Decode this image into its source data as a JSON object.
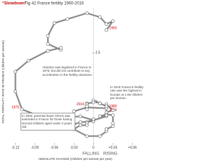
{
  "chart_data": {
    "type": "connected-scatter",
    "title_highlight": "“Slowdown”",
    "title": "Fig 42 France fertility 1960-2016",
    "y_label": "TOTAL FERTILITY RATE IN FRANCE (children per woman)",
    "x_label": "ABSOLUTE CHANGE (children per woman per year)",
    "x_left_label": "FALLING",
    "x_right_label": "RISING",
    "xlim": [
      -0.13,
      0.07
    ],
    "xticks": [
      -0.12,
      -0.09,
      -0.06,
      -0.03,
      0,
      {
        "value": 0.03,
        "label": "+0.03"
      },
      {
        "value": 0.06,
        "label": "+0.06"
      }
    ],
    "ylim": [
      1.62,
      2.95
    ],
    "yticks": [
      2,
      2.5
    ],
    "color": "#888888",
    "x": [
      0.02,
      0.03,
      0.02,
      0.01,
      -0.01,
      -0.04,
      -0.06,
      -0.07,
      -0.07,
      -0.05,
      -0.05,
      -0.07,
      -0.1,
      -0.12,
      -0.12,
      -0.11,
      -0.07,
      -0.02,
      0,
      0.02,
      0.02,
      -0.01,
      -0.03,
      -0.03,
      -0.02,
      0,
      0,
      -0.01,
      -0.01,
      -0.01,
      -0.01,
      -0.02,
      -0.03,
      -0.01,
      0.01,
      0.02,
      0.02,
      0.02,
      0.03,
      0.03,
      0.03,
      0.02,
      0.01,
      0.02,
      0.02,
      0.03,
      0.02,
      0.02,
      0.01,
      0.01,
      0,
      0,
      -0.01,
      -0.01,
      -0.01,
      -0.01,
      -0.01
    ],
    "y": [
      2.73,
      2.82,
      2.79,
      2.86,
      2.9,
      2.84,
      2.8,
      2.67,
      2.59,
      2.53,
      2.55,
      2.52,
      2.42,
      2.31,
      2.11,
      1.93,
      1.83,
      1.86,
      1.82,
      1.86,
      1.94,
      1.95,
      1.91,
      1.78,
      1.8,
      1.81,
      1.83,
      1.8,
      1.8,
      1.79,
      1.77,
      1.77,
      1.73,
      1.66,
      1.66,
      1.71,
      1.73,
      1.73,
      1.76,
      1.79,
      1.87,
      1.88,
      1.86,
      1.87,
      1.9,
      1.92,
      1.98,
      1.96,
      1.99,
      1.99,
      2.02,
      2,
      1.99,
      1.97,
      1.98,
      1.93,
      1.96
    ],
    "point_labels": [
      "1960",
      null,
      null,
      null,
      null,
      null,
      null,
      null,
      null,
      null,
      null,
      null,
      null,
      null,
      null,
      "1975",
      null,
      null,
      null,
      null,
      "1980",
      null,
      null,
      null,
      null,
      null,
      null,
      null,
      null,
      null,
      null,
      null,
      null,
      null,
      null,
      null,
      null,
      null,
      null,
      null,
      null,
      null,
      null,
      null,
      "2004",
      null,
      null,
      null,
      null,
      null,
      null,
      null,
      null,
      null,
      null,
      null,
      "2016"
    ],
    "annotations": [
      "Abortion was legalized in France in 1975, but did not contribute to any acceleration in the fertility downturn.",
      "In 1994, parental leave reform was extended in France for those having second children aged under 3 years old.",
      "In 2016 France's fertility rate was the highest in Europe at 1.96 children per woman."
    ]
  }
}
